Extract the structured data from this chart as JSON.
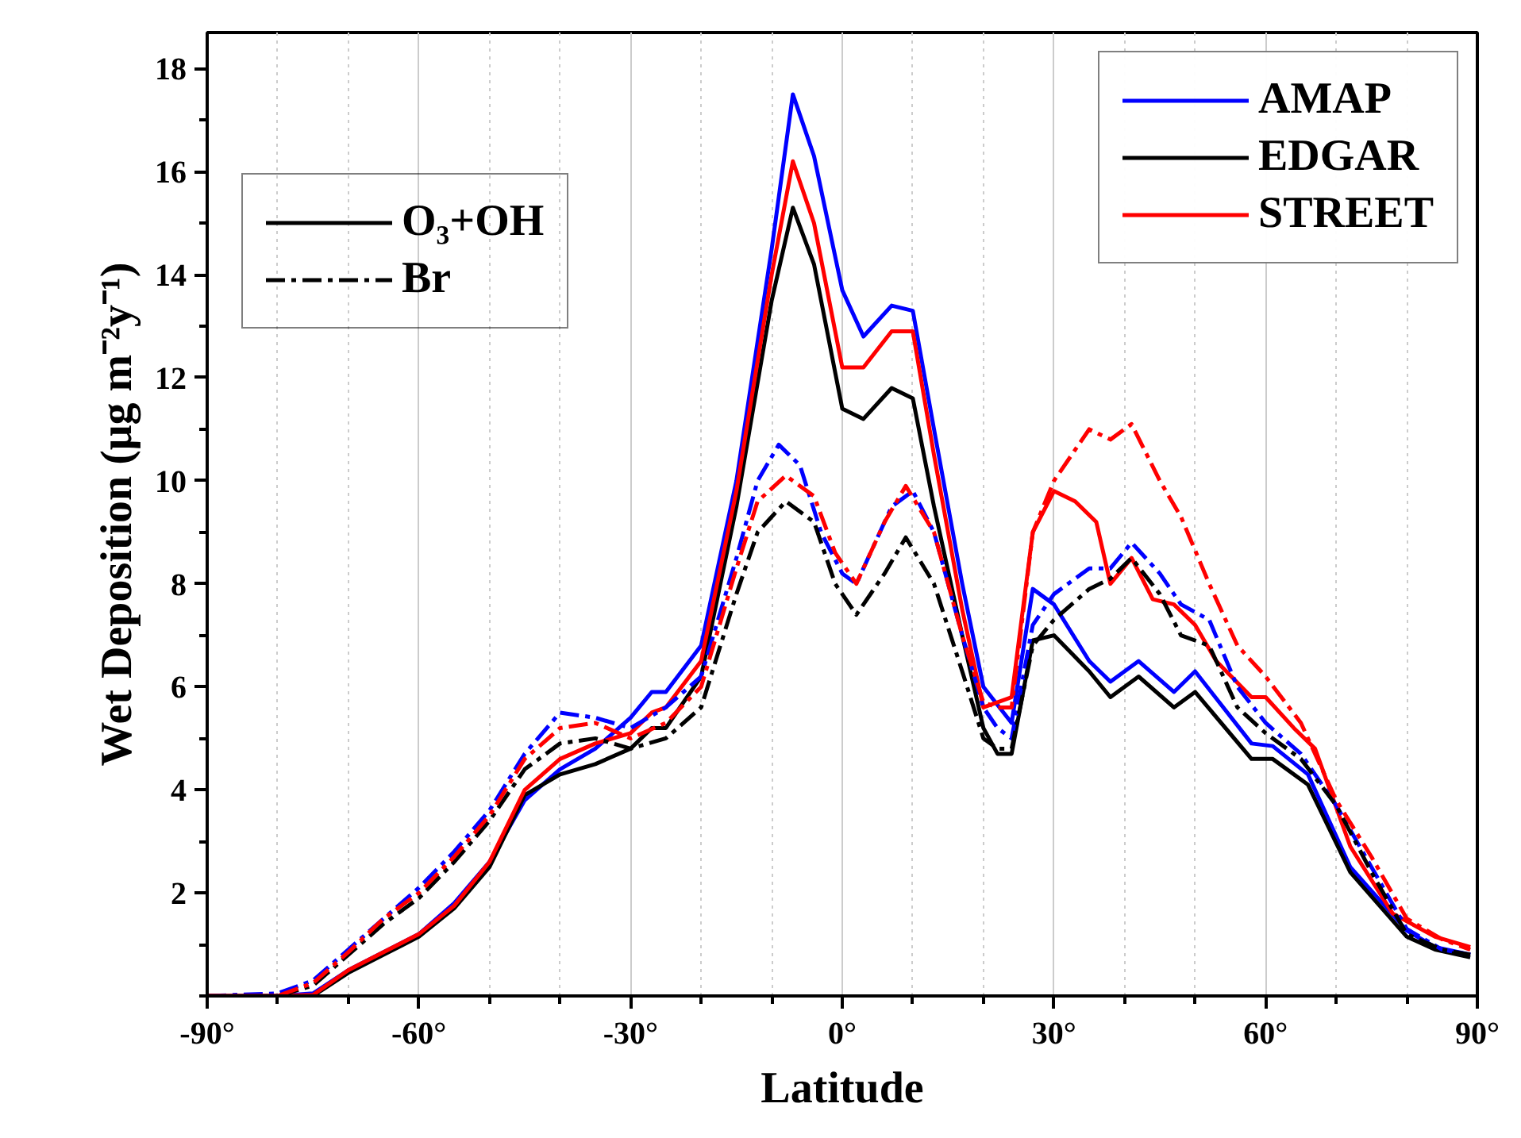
{
  "chart_data": {
    "type": "line",
    "xlabel": "Latitude",
    "ylabel": "Wet Deposition (μg m⁻²y⁻¹)",
    "xlim": [
      -90,
      90
    ],
    "ylim": [
      0,
      18.7
    ],
    "xticks": [
      {
        "value": -90,
        "label": "-90°"
      },
      {
        "value": -60,
        "label": "-60°"
      },
      {
        "value": -30,
        "label": "-30°"
      },
      {
        "value": 0,
        "label": "0°"
      },
      {
        "value": 30,
        "label": "30°"
      },
      {
        "value": 60,
        "label": "60°"
      },
      {
        "value": 90,
        "label": "90°"
      }
    ],
    "yticks": [
      2,
      4,
      6,
      8,
      10,
      12,
      14,
      16,
      18
    ],
    "grid": "x",
    "legend": "top right",
    "annotations": [
      "O₃+OH",
      "Br"
    ],
    "series": [
      {
        "name": "AMAP",
        "color": "#0000ff",
        "line_style": "solid",
        "x": [
          -90,
          -80,
          -75,
          -70,
          -65,
          -60,
          -55,
          -50,
          -45,
          -40,
          -35,
          -30,
          -27,
          -25,
          -20,
          -15,
          -10,
          -7,
          -4,
          0,
          3,
          7,
          10,
          13,
          17,
          20,
          24,
          27,
          30,
          35,
          38,
          42,
          47,
          50,
          58,
          61,
          66,
          72,
          80,
          84,
          89
        ],
        "values": [
          0,
          0,
          0.05,
          0.5,
          0.85,
          1.2,
          1.8,
          2.6,
          3.8,
          4.4,
          4.8,
          5.4,
          5.9,
          5.9,
          6.8,
          10,
          14.5,
          17.5,
          16.3,
          13.7,
          12.8,
          13.4,
          13.3,
          11,
          8,
          6,
          5.3,
          7.9,
          7.6,
          6.5,
          6.1,
          6.5,
          5.9,
          6.3,
          4.9,
          4.85,
          4.3,
          2.5,
          1.27,
          0.95,
          0.8
        ]
      },
      {
        "name": "EDGAR",
        "color": "#000000",
        "line_style": "solid",
        "x": [
          -90,
          -80,
          -75,
          -70,
          -65,
          -60,
          -55,
          -50,
          -45,
          -40,
          -35,
          -30,
          -27,
          -25,
          -20,
          -15,
          -10,
          -7,
          -4,
          0,
          3,
          7,
          10,
          13,
          17,
          20,
          22,
          24,
          27,
          30,
          35,
          38,
          42,
          47,
          50,
          58,
          61,
          66,
          72,
          80,
          84,
          89
        ],
        "values": [
          0,
          0,
          0,
          0.45,
          0.8,
          1.15,
          1.7,
          2.5,
          3.9,
          4.3,
          4.5,
          4.8,
          5.2,
          5.2,
          6.2,
          9.5,
          13.5,
          15.3,
          14.2,
          11.4,
          11.2,
          11.8,
          11.6,
          9.5,
          7,
          5.2,
          4.7,
          4.7,
          6.9,
          7,
          6.3,
          5.8,
          6.2,
          5.6,
          5.9,
          4.6,
          4.6,
          4.1,
          2.4,
          1.15,
          0.9,
          0.75
        ]
      },
      {
        "name": "STREET",
        "color": "#ff0000",
        "line_style": "solid",
        "x": [
          -90,
          -80,
          -75,
          -70,
          -65,
          -60,
          -55,
          -50,
          -45,
          -40,
          -35,
          -30,
          -27,
          -25,
          -20,
          -15,
          -10,
          -7,
          -4,
          0,
          3,
          7,
          10,
          13,
          17,
          20,
          24,
          27,
          30,
          33,
          36,
          38,
          41,
          44,
          47,
          50,
          53,
          58,
          60,
          64,
          67,
          72,
          78,
          84,
          89
        ],
        "values": [
          0,
          0,
          0.02,
          0.5,
          0.85,
          1.2,
          1.75,
          2.6,
          4,
          4.6,
          4.9,
          5.1,
          5.5,
          5.6,
          6.5,
          9.8,
          14,
          16.2,
          15,
          12.2,
          12.2,
          12.9,
          12.9,
          10.5,
          7.5,
          5.6,
          5.8,
          9,
          9.8,
          9.6,
          9.2,
          8,
          8.5,
          7.7,
          7.6,
          7.2,
          6.5,
          5.8,
          5.8,
          5.2,
          4.8,
          2.9,
          1.6,
          1.15,
          0.95
        ]
      },
      {
        "color": "#0000ff",
        "line_style": "dashdot",
        "x": [
          -90,
          -80,
          -75,
          -70,
          -65,
          -60,
          -55,
          -50,
          -45,
          -40,
          -35,
          -30,
          -25,
          -20,
          -15,
          -12,
          -9,
          -6,
          -3,
          0,
          2,
          7,
          10,
          13,
          17,
          20,
          22,
          24,
          27,
          30,
          35,
          38,
          41,
          45,
          48,
          52,
          56,
          60,
          65,
          70,
          75,
          80,
          85,
          89
        ],
        "values": [
          0,
          0.05,
          0.3,
          0.9,
          1.5,
          2.1,
          2.8,
          3.6,
          4.7,
          5.5,
          5.4,
          5.2,
          5.6,
          6.2,
          8.5,
          10,
          10.7,
          10.3,
          9,
          8.2,
          8,
          9.5,
          9.8,
          9,
          7,
          5.6,
          5.2,
          5,
          7.2,
          7.8,
          8.3,
          8.3,
          8.8,
          8.2,
          7.6,
          7.3,
          6,
          5.3,
          4.7,
          3.7,
          2.5,
          1.3,
          0.9,
          0.8
        ]
      },
      {
        "color": "#000000",
        "line_style": "dashdot",
        "x": [
          -90,
          -80,
          -75,
          -70,
          -65,
          -60,
          -55,
          -50,
          -45,
          -40,
          -35,
          -30,
          -25,
          -20,
          -15,
          -12,
          -8,
          -4,
          -1,
          2,
          6,
          9,
          13,
          17,
          20,
          22,
          24,
          27,
          30,
          35,
          38,
          41,
          45,
          48,
          52,
          56,
          60,
          65,
          70,
          75,
          80,
          85,
          89
        ],
        "values": [
          0,
          0,
          0.2,
          0.8,
          1.4,
          1.9,
          2.6,
          3.4,
          4.4,
          4.9,
          5,
          4.8,
          5,
          5.6,
          7.8,
          9,
          9.6,
          9.2,
          8,
          7.4,
          8.2,
          8.9,
          8,
          6.3,
          5,
          4.8,
          4.8,
          6.8,
          7.3,
          7.9,
          8.1,
          8.5,
          7.8,
          7,
          6.8,
          5.6,
          5.1,
          4.6,
          3.7,
          2.4,
          1.2,
          0.9,
          0.8
        ]
      },
      {
        "color": "#ff0000",
        "line_style": "dashdot",
        "x": [
          -90,
          -80,
          -75,
          -70,
          -65,
          -60,
          -55,
          -50,
          -45,
          -40,
          -35,
          -30,
          -25,
          -20,
          -15,
          -12,
          -8,
          -4,
          -1,
          2,
          6,
          9,
          13,
          17,
          20,
          22,
          24,
          27,
          30,
          35,
          38,
          41,
          45,
          48,
          52,
          56,
          60,
          65,
          70,
          75,
          80,
          85,
          89
        ],
        "values": [
          0,
          0,
          0.25,
          0.85,
          1.5,
          2,
          2.7,
          3.5,
          4.6,
          5.2,
          5.3,
          5,
          5.3,
          6,
          8.3,
          9.6,
          10.1,
          9.7,
          8.6,
          8,
          9.2,
          9.9,
          9,
          7,
          5.7,
          5.6,
          5.6,
          9,
          10,
          11,
          10.8,
          11.1,
          10,
          9.3,
          8,
          6.8,
          6.2,
          5.3,
          3.8,
          2.7,
          1.5,
          1.1,
          0.9
        ]
      }
    ]
  }
}
